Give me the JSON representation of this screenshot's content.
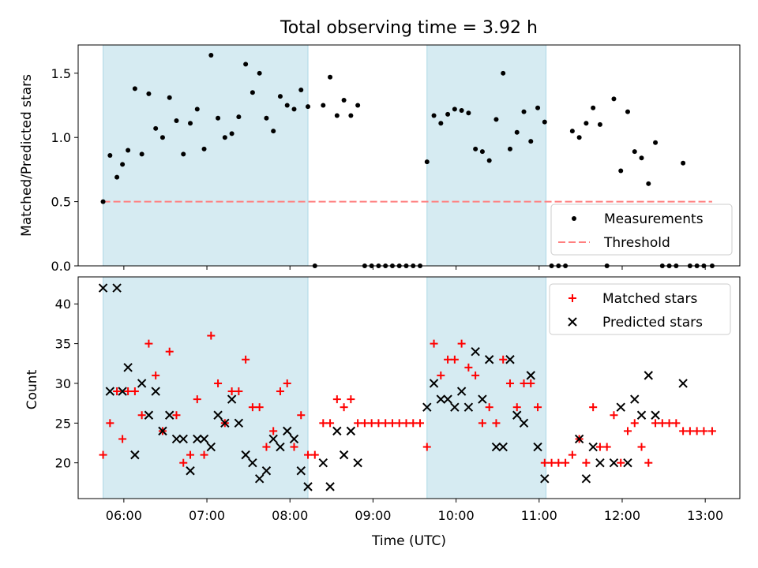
{
  "chart_data": [
    {
      "type": "scatter",
      "title": "Total observing time = 3.92 h",
      "xlabel": "",
      "ylabel": "Matched/Predicted stars",
      "ylim": [
        0,
        1.72
      ],
      "yticks": [
        "0.0",
        "0.5",
        "1.0",
        "1.5"
      ],
      "ytick_values": [
        0,
        0.5,
        1.0,
        1.5
      ],
      "grid": false,
      "legend_position": "lower-right",
      "legend": [
        "Measurements",
        "Threshold"
      ],
      "shaded_intervals": [
        [
          "05:45",
          "08:13"
        ],
        [
          "09:39",
          "11:05"
        ]
      ],
      "threshold": {
        "name": "Threshold",
        "y": 0.5,
        "x_range": [
          "05:45",
          "13:05"
        ],
        "color": "#ff7f7f"
      },
      "series": [
        {
          "name": "Measurements",
          "color": "#000000",
          "points": [
            [
              "05:45",
              0.5
            ],
            [
              "05:50",
              0.86
            ],
            [
              "05:55",
              0.69
            ],
            [
              "05:59",
              0.79
            ],
            [
              "06:03",
              0.9
            ],
            [
              "06:08",
              1.38
            ],
            [
              "06:13",
              0.87
            ],
            [
              "06:18",
              1.34
            ],
            [
              "06:23",
              1.07
            ],
            [
              "06:28",
              1.0
            ],
            [
              "06:33",
              1.31
            ],
            [
              "06:38",
              1.13
            ],
            [
              "06:43",
              0.87
            ],
            [
              "06:48",
              1.11
            ],
            [
              "06:53",
              1.22
            ],
            [
              "06:58",
              0.91
            ],
            [
              "07:03",
              1.64
            ],
            [
              "07:08",
              1.15
            ],
            [
              "07:13",
              1.0
            ],
            [
              "07:18",
              1.03
            ],
            [
              "07:23",
              1.16
            ],
            [
              "07:28",
              1.57
            ],
            [
              "07:33",
              1.35
            ],
            [
              "07:38",
              1.5
            ],
            [
              "07:43",
              1.15
            ],
            [
              "07:48",
              1.05
            ],
            [
              "07:53",
              1.32
            ],
            [
              "07:58",
              1.25
            ],
            [
              "08:03",
              1.22
            ],
            [
              "08:08",
              1.37
            ],
            [
              "08:13",
              1.24
            ],
            [
              "08:18",
              0.0
            ],
            [
              "08:24",
              1.25
            ],
            [
              "08:29",
              1.47
            ],
            [
              "08:34",
              1.17
            ],
            [
              "08:39",
              1.29
            ],
            [
              "08:44",
              1.17
            ],
            [
              "08:49",
              1.25
            ],
            [
              "08:54",
              0.0
            ],
            [
              "08:59",
              0.0
            ],
            [
              "09:04",
              0.0
            ],
            [
              "09:09",
              0.0
            ],
            [
              "09:14",
              0.0
            ],
            [
              "09:19",
              0.0
            ],
            [
              "09:24",
              0.0
            ],
            [
              "09:29",
              0.0
            ],
            [
              "09:34",
              0.0
            ],
            [
              "09:39",
              0.81
            ],
            [
              "09:44",
              1.17
            ],
            [
              "09:49",
              1.11
            ],
            [
              "09:54",
              1.18
            ],
            [
              "09:59",
              1.22
            ],
            [
              "10:04",
              1.21
            ],
            [
              "10:09",
              1.19
            ],
            [
              "10:14",
              0.91
            ],
            [
              "10:19",
              0.89
            ],
            [
              "10:24",
              0.82
            ],
            [
              "10:29",
              1.14
            ],
            [
              "10:34",
              1.5
            ],
            [
              "10:39",
              0.91
            ],
            [
              "10:44",
              1.04
            ],
            [
              "10:49",
              1.2
            ],
            [
              "10:54",
              0.97
            ],
            [
              "10:59",
              1.23
            ],
            [
              "11:04",
              1.12
            ],
            [
              "11:09",
              0.0
            ],
            [
              "11:14",
              0.0
            ],
            [
              "11:19",
              0.0
            ],
            [
              "11:24",
              1.05
            ],
            [
              "11:29",
              1.0
            ],
            [
              "11:34",
              1.11
            ],
            [
              "11:39",
              1.23
            ],
            [
              "11:44",
              1.1
            ],
            [
              "11:49",
              0.0
            ],
            [
              "11:54",
              1.3
            ],
            [
              "11:59",
              0.74
            ],
            [
              "12:04",
              1.2
            ],
            [
              "12:09",
              0.89
            ],
            [
              "12:14",
              0.84
            ],
            [
              "12:19",
              0.64
            ],
            [
              "12:24",
              0.96
            ],
            [
              "12:29",
              0.0
            ],
            [
              "12:34",
              0.0
            ],
            [
              "12:39",
              0.0
            ],
            [
              "12:44",
              0.8
            ],
            [
              "12:49",
              0.0
            ],
            [
              "12:54",
              0.0
            ],
            [
              "12:59",
              0.0
            ],
            [
              "13:05",
              0.0
            ]
          ]
        }
      ]
    },
    {
      "type": "scatter",
      "title": "",
      "xlabel": "Time (UTC)",
      "ylabel": "Count",
      "ylim": [
        15.5,
        43.4
      ],
      "yticks": [
        "20",
        "25",
        "30",
        "35",
        "40"
      ],
      "ytick_values": [
        20,
        25,
        30,
        35,
        40
      ],
      "xlim": [
        "05:27",
        "13:25"
      ],
      "xticks": [
        "06:00",
        "07:00",
        "08:00",
        "09:00",
        "10:00",
        "11:00",
        "12:00",
        "13:00"
      ],
      "grid": false,
      "legend_position": "upper-right",
      "legend": [
        "Matched stars",
        "Predicted stars"
      ],
      "shaded_intervals": [
        [
          "05:45",
          "08:13"
        ],
        [
          "09:39",
          "11:05"
        ]
      ],
      "series": [
        {
          "name": "Matched stars",
          "marker": "plus",
          "color": "#ff0000",
          "points": [
            [
              "05:45",
              21
            ],
            [
              "05:50",
              25
            ],
            [
              "05:55",
              29
            ],
            [
              "05:59",
              23
            ],
            [
              "06:03",
              29
            ],
            [
              "06:08",
              29
            ],
            [
              "06:13",
              26
            ],
            [
              "06:18",
              35
            ],
            [
              "06:23",
              31
            ],
            [
              "06:28",
              24
            ],
            [
              "06:33",
              34
            ],
            [
              "06:38",
              26
            ],
            [
              "06:43",
              20
            ],
            [
              "06:48",
              21
            ],
            [
              "06:53",
              28
            ],
            [
              "06:58",
              21
            ],
            [
              "07:03",
              36
            ],
            [
              "07:08",
              30
            ],
            [
              "07:13",
              25
            ],
            [
              "07:18",
              29
            ],
            [
              "07:23",
              29
            ],
            [
              "07:28",
              33
            ],
            [
              "07:33",
              27
            ],
            [
              "07:38",
              27
            ],
            [
              "07:43",
              22
            ],
            [
              "07:48",
              24
            ],
            [
              "07:53",
              29
            ],
            [
              "07:58",
              30
            ],
            [
              "08:03",
              22
            ],
            [
              "08:08",
              26
            ],
            [
              "08:13",
              21
            ],
            [
              "08:18",
              21
            ],
            [
              "08:24",
              25
            ],
            [
              "08:29",
              25
            ],
            [
              "08:34",
              28
            ],
            [
              "08:39",
              27
            ],
            [
              "08:44",
              28
            ],
            [
              "08:49",
              25
            ],
            [
              "08:54",
              25
            ],
            [
              "08:59",
              25
            ],
            [
              "09:04",
              25
            ],
            [
              "09:09",
              25
            ],
            [
              "09:14",
              25
            ],
            [
              "09:19",
              25
            ],
            [
              "09:24",
              25
            ],
            [
              "09:29",
              25
            ],
            [
              "09:34",
              25
            ],
            [
              "09:39",
              22
            ],
            [
              "09:44",
              35
            ],
            [
              "09:49",
              31
            ],
            [
              "09:54",
              33
            ],
            [
              "09:59",
              33
            ],
            [
              "10:04",
              35
            ],
            [
              "10:09",
              32
            ],
            [
              "10:14",
              31
            ],
            [
              "10:19",
              25
            ],
            [
              "10:24",
              27
            ],
            [
              "10:29",
              25
            ],
            [
              "10:34",
              33
            ],
            [
              "10:39",
              30
            ],
            [
              "10:44",
              27
            ],
            [
              "10:49",
              30
            ],
            [
              "10:54",
              30
            ],
            [
              "10:59",
              27
            ],
            [
              "11:04",
              20
            ],
            [
              "11:09",
              20
            ],
            [
              "11:14",
              20
            ],
            [
              "11:19",
              20
            ],
            [
              "11:24",
              21
            ],
            [
              "11:29",
              23
            ],
            [
              "11:34",
              20
            ],
            [
              "11:39",
              27
            ],
            [
              "11:44",
              22
            ],
            [
              "11:49",
              22
            ],
            [
              "11:54",
              26
            ],
            [
              "11:59",
              20
            ],
            [
              "12:04",
              24
            ],
            [
              "12:09",
              25
            ],
            [
              "12:14",
              22
            ],
            [
              "12:19",
              20
            ],
            [
              "12:24",
              25
            ],
            [
              "12:29",
              25
            ],
            [
              "12:34",
              25
            ],
            [
              "12:39",
              25
            ],
            [
              "12:44",
              24
            ],
            [
              "12:49",
              24
            ],
            [
              "12:54",
              24
            ],
            [
              "12:59",
              24
            ],
            [
              "13:05",
              24
            ]
          ]
        },
        {
          "name": "Predicted stars",
          "marker": "x",
          "color": "#000000",
          "points": [
            [
              "05:45",
              42
            ],
            [
              "05:50",
              29
            ],
            [
              "05:55",
              42
            ],
            [
              "05:59",
              29
            ],
            [
              "06:03",
              32
            ],
            [
              "06:08",
              21
            ],
            [
              "06:13",
              30
            ],
            [
              "06:18",
              26
            ],
            [
              "06:23",
              29
            ],
            [
              "06:28",
              24
            ],
            [
              "06:33",
              26
            ],
            [
              "06:38",
              23
            ],
            [
              "06:43",
              23
            ],
            [
              "06:48",
              19
            ],
            [
              "06:53",
              23
            ],
            [
              "06:58",
              23
            ],
            [
              "07:03",
              22
            ],
            [
              "07:08",
              26
            ],
            [
              "07:13",
              25
            ],
            [
              "07:18",
              28
            ],
            [
              "07:23",
              25
            ],
            [
              "07:28",
              21
            ],
            [
              "07:33",
              20
            ],
            [
              "07:38",
              18
            ],
            [
              "07:43",
              19
            ],
            [
              "07:48",
              23
            ],
            [
              "07:53",
              22
            ],
            [
              "07:58",
              24
            ],
            [
              "08:03",
              23
            ],
            [
              "08:08",
              19
            ],
            [
              "08:13",
              17
            ],
            [
              "08:24",
              20
            ],
            [
              "08:29",
              17
            ],
            [
              "08:34",
              24
            ],
            [
              "08:39",
              21
            ],
            [
              "08:44",
              24
            ],
            [
              "08:49",
              20
            ],
            [
              "09:39",
              27
            ],
            [
              "09:44",
              30
            ],
            [
              "09:49",
              28
            ],
            [
              "09:54",
              28
            ],
            [
              "09:59",
              27
            ],
            [
              "10:04",
              29
            ],
            [
              "10:09",
              27
            ],
            [
              "10:14",
              34
            ],
            [
              "10:19",
              28
            ],
            [
              "10:24",
              33
            ],
            [
              "10:29",
              22
            ],
            [
              "10:34",
              22
            ],
            [
              "10:39",
              33
            ],
            [
              "10:44",
              26
            ],
            [
              "10:49",
              25
            ],
            [
              "10:54",
              31
            ],
            [
              "10:59",
              22
            ],
            [
              "11:04",
              18
            ],
            [
              "11:29",
              23
            ],
            [
              "11:34",
              18
            ],
            [
              "11:39",
              22
            ],
            [
              "11:44",
              20
            ],
            [
              "11:54",
              20
            ],
            [
              "11:59",
              27
            ],
            [
              "12:04",
              20
            ],
            [
              "12:09",
              28
            ],
            [
              "12:14",
              26
            ],
            [
              "12:19",
              31
            ],
            [
              "12:24",
              26
            ],
            [
              "12:44",
              30
            ]
          ]
        }
      ]
    }
  ]
}
